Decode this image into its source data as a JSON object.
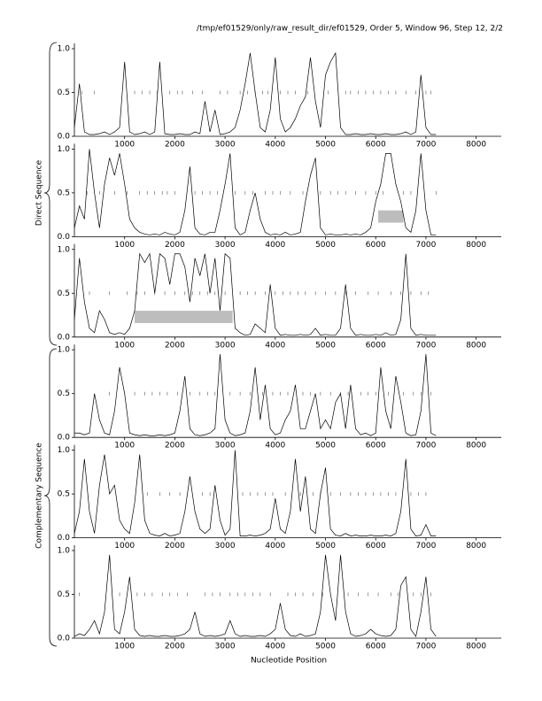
{
  "header": {
    "title": "/tmp/ef01529/only/raw_result_dir/ef01529, Order 5, Window 96, Step 12, 2/2",
    "x_label": "Nucleotide Position",
    "groups": [
      "Direct Sequence",
      "Complementary Sequence"
    ]
  },
  "chart_data": [
    {
      "type": "line",
      "color": "#000000",
      "x": [
        0,
        100,
        200,
        300,
        400,
        500,
        600,
        700,
        800,
        900,
        1000,
        1100,
        1200,
        1300,
        1400,
        1500,
        1600,
        1700,
        1800,
        1900,
        2000,
        2100,
        2200,
        2300,
        2400,
        2500,
        2600,
        2700,
        2800,
        2900,
        3000,
        3100,
        3200,
        3300,
        3400,
        3500,
        3600,
        3700,
        3800,
        3900,
        4000,
        4100,
        4200,
        4300,
        4400,
        4500,
        4600,
        4700,
        4800,
        4900,
        5000,
        5100,
        5200,
        5300,
        5400,
        5500,
        5600,
        5700,
        5800,
        5900,
        6000,
        6100,
        6200,
        6300,
        6400,
        6500,
        6600,
        6700,
        6800,
        6900,
        7000,
        7100,
        7200
      ],
      "values": [
        0.1,
        0.6,
        0.05,
        0.02,
        0.02,
        0.03,
        0.05,
        0.02,
        0.05,
        0.1,
        0.85,
        0.05,
        0.02,
        0.03,
        0.05,
        0.02,
        0.05,
        0.85,
        0.03,
        0.02,
        0.02,
        0.03,
        0.02,
        0.02,
        0.05,
        0.03,
        0.4,
        0.05,
        0.3,
        0.02,
        0.03,
        0.05,
        0.1,
        0.3,
        0.6,
        0.95,
        0.5,
        0.1,
        0.05,
        0.3,
        0.9,
        0.2,
        0.05,
        0.1,
        0.2,
        0.35,
        0.45,
        0.9,
        0.4,
        0.1,
        0.7,
        0.85,
        0.95,
        0.1,
        0.02,
        0.02,
        0.03,
        0.02,
        0.02,
        0.03,
        0.02,
        0.02,
        0.03,
        0.02,
        0.02,
        0.03,
        0.05,
        0.02,
        0.05,
        0.7,
        0.1,
        0.02,
        0.02
      ],
      "stops": [
        150,
        400,
        1200,
        1350,
        1500,
        1650,
        1900,
        2050,
        2150,
        2350,
        2550,
        2900,
        3050,
        3300,
        3450,
        3600,
        3750,
        3850,
        4100,
        4250,
        4400,
        4650,
        5050,
        5400,
        5500,
        5650,
        5800,
        5950,
        6100,
        6250,
        6400,
        6600,
        6800,
        7000,
        7100
      ],
      "regions": [],
      "xlim": [
        0,
        8500
      ],
      "xticks": [
        1000,
        2000,
        3000,
        4000,
        5000,
        6000,
        7000,
        8000
      ],
      "ylim": [
        0,
        1
      ],
      "yticks": [
        {
          "value": 0,
          "label": "0.0"
        },
        {
          "value": 0.5,
          "label": "0.5"
        },
        {
          "value": 1,
          "label": "1.0"
        }
      ]
    },
    {
      "type": "line",
      "color": "#000000",
      "x": [
        0,
        100,
        200,
        300,
        400,
        500,
        600,
        700,
        800,
        900,
        1000,
        1100,
        1200,
        1300,
        1400,
        1500,
        1600,
        1700,
        1800,
        1900,
        2000,
        2100,
        2200,
        2300,
        2400,
        2500,
        2600,
        2700,
        2800,
        2900,
        3000,
        3100,
        3200,
        3300,
        3400,
        3500,
        3600,
        3700,
        3800,
        3900,
        4000,
        4100,
        4200,
        4300,
        4400,
        4500,
        4600,
        4700,
        4800,
        4900,
        5000,
        5100,
        5200,
        5300,
        5400,
        5500,
        5600,
        5700,
        5800,
        5900,
        6000,
        6100,
        6200,
        6300,
        6400,
        6500,
        6600,
        6700,
        6800,
        6900,
        7000,
        7100,
        7200
      ],
      "values": [
        0.1,
        0.35,
        0.2,
        1.0,
        0.5,
        0.1,
        0.6,
        0.9,
        0.7,
        0.95,
        0.6,
        0.2,
        0.1,
        0.05,
        0.03,
        0.02,
        0.03,
        0.02,
        0.05,
        0.03,
        0.02,
        0.05,
        0.3,
        0.8,
        0.1,
        0.03,
        0.02,
        0.05,
        0.05,
        0.3,
        0.6,
        0.95,
        0.1,
        0.02,
        0.05,
        0.3,
        0.5,
        0.2,
        0.05,
        0.02,
        0.03,
        0.02,
        0.05,
        0.02,
        0.03,
        0.05,
        0.4,
        0.7,
        0.9,
        0.1,
        0.02,
        0.03,
        0.02,
        0.02,
        0.03,
        0.02,
        0.03,
        0.02,
        0.05,
        0.1,
        0.4,
        0.6,
        0.95,
        0.95,
        0.6,
        0.4,
        0.1,
        0.05,
        0.3,
        0.95,
        0.3,
        0.02,
        0.02
      ],
      "stops": [
        250,
        500,
        800,
        1050,
        1300,
        1450,
        1600,
        1750,
        1850,
        2000,
        2400,
        2550,
        2700,
        2850,
        3200,
        3400,
        3550,
        3800,
        3950,
        4100,
        4300,
        4550,
        4900,
        5100,
        5250,
        5400,
        5600,
        5800,
        6000,
        6150,
        6550,
        6700,
        7200
      ],
      "regions": [
        [
          6050,
          6550
        ]
      ],
      "xlim": [
        0,
        8500
      ],
      "xticks": [
        1000,
        2000,
        3000,
        4000,
        5000,
        6000,
        7000,
        8000
      ],
      "ylim": [
        0,
        1
      ],
      "yticks": [
        {
          "value": 0,
          "label": "0.0"
        },
        {
          "value": 0.5,
          "label": "0.5"
        },
        {
          "value": 1,
          "label": "1.0"
        }
      ]
    },
    {
      "type": "line",
      "color": "#000000",
      "x": [
        0,
        100,
        200,
        300,
        400,
        500,
        600,
        700,
        800,
        900,
        1000,
        1100,
        1200,
        1300,
        1400,
        1500,
        1600,
        1700,
        1800,
        1900,
        2000,
        2100,
        2200,
        2300,
        2400,
        2500,
        2600,
        2700,
        2800,
        2900,
        3000,
        3100,
        3200,
        3300,
        3400,
        3500,
        3600,
        3700,
        3800,
        3900,
        4000,
        4100,
        4200,
        4300,
        4400,
        4500,
        4600,
        4700,
        4800,
        4900,
        5000,
        5100,
        5200,
        5300,
        5400,
        5500,
        5600,
        5700,
        5800,
        5900,
        6000,
        6100,
        6200,
        6300,
        6400,
        6500,
        6600,
        6700,
        6800,
        6900,
        7000,
        7100,
        7200
      ],
      "values": [
        0.2,
        0.9,
        0.4,
        0.1,
        0.05,
        0.3,
        0.2,
        0.05,
        0.03,
        0.05,
        0.03,
        0.1,
        0.3,
        0.95,
        0.85,
        0.95,
        0.5,
        0.95,
        0.9,
        0.6,
        0.95,
        0.95,
        0.8,
        0.4,
        0.9,
        0.7,
        0.95,
        0.5,
        0.9,
        0.3,
        0.95,
        0.9,
        0.1,
        0.05,
        0.02,
        0.03,
        0.15,
        0.1,
        0.05,
        0.6,
        0.1,
        0.02,
        0.03,
        0.02,
        0.02,
        0.03,
        0.02,
        0.03,
        0.1,
        0.02,
        0.03,
        0.02,
        0.02,
        0.1,
        0.6,
        0.1,
        0.02,
        0.03,
        0.02,
        0.02,
        0.03,
        0.02,
        0.05,
        0.02,
        0.03,
        0.2,
        0.95,
        0.1,
        0.02,
        0.03,
        0.02,
        0.02,
        0.02
      ],
      "stops": [
        300,
        700,
        1050,
        1250,
        1400,
        1600,
        1800,
        2000,
        2200,
        2350,
        2500,
        2650,
        2800,
        3000,
        3300,
        3450,
        3600,
        3800,
        4000,
        4150,
        4300,
        4450,
        4600,
        4800,
        5000,
        5200,
        5400,
        5600,
        5850,
        6050,
        6300,
        6500,
        6700,
        6900,
        7050
      ],
      "regions": [
        [
          1200,
          3150
        ]
      ],
      "xlim": [
        0,
        8500
      ],
      "xticks": [
        1000,
        2000,
        3000,
        4000,
        5000,
        6000,
        7000,
        8000
      ],
      "ylim": [
        0,
        1
      ],
      "yticks": [
        {
          "value": 0,
          "label": "0.0"
        },
        {
          "value": 0.5,
          "label": "0.5"
        },
        {
          "value": 1,
          "label": "1.0"
        }
      ]
    },
    {
      "type": "line",
      "color": "#000000",
      "x": [
        0,
        100,
        200,
        300,
        400,
        500,
        600,
        700,
        800,
        900,
        1000,
        1100,
        1200,
        1300,
        1400,
        1500,
        1600,
        1700,
        1800,
        1900,
        2000,
        2100,
        2200,
        2300,
        2400,
        2500,
        2600,
        2700,
        2800,
        2900,
        3000,
        3100,
        3200,
        3300,
        3400,
        3500,
        3600,
        3700,
        3800,
        3900,
        4000,
        4100,
        4200,
        4300,
        4400,
        4500,
        4600,
        4700,
        4800,
        4900,
        5000,
        5100,
        5200,
        5300,
        5400,
        5500,
        5600,
        5700,
        5800,
        5900,
        6000,
        6100,
        6200,
        6300,
        6400,
        6500,
        6600,
        6700,
        6800,
        6900,
        7000,
        7100,
        7200
      ],
      "values": [
        0.05,
        0.05,
        0.03,
        0.05,
        0.5,
        0.2,
        0.05,
        0.03,
        0.3,
        0.8,
        0.5,
        0.05,
        0.03,
        0.02,
        0.03,
        0.02,
        0.02,
        0.03,
        0.02,
        0.03,
        0.05,
        0.3,
        0.7,
        0.1,
        0.03,
        0.02,
        0.03,
        0.05,
        0.1,
        0.95,
        0.2,
        0.05,
        0.02,
        0.03,
        0.05,
        0.3,
        0.8,
        0.2,
        0.6,
        0.1,
        0.03,
        0.05,
        0.2,
        0.3,
        0.6,
        0.1,
        0.1,
        0.3,
        0.5,
        0.1,
        0.2,
        0.1,
        0.4,
        0.5,
        0.1,
        0.6,
        0.1,
        0.03,
        0.05,
        0.02,
        0.05,
        0.8,
        0.3,
        0.1,
        0.7,
        0.4,
        0.05,
        0.02,
        0.03,
        0.3,
        0.95,
        0.05,
        0.02
      ],
      "stops": [
        700,
        1200,
        1400,
        1550,
        1700,
        1850,
        2050,
        2300,
        2500,
        2650,
        2800,
        3100,
        3300,
        3500,
        3750,
        3950,
        4100,
        4250,
        4550,
        4700,
        4900,
        5100,
        5300,
        5450,
        5700,
        5850,
        6000,
        6250,
        6550,
        6750,
        6900,
        7100
      ],
      "regions": [],
      "xlim": [
        0,
        8500
      ],
      "xticks": [
        1000,
        2000,
        3000,
        4000,
        5000,
        6000,
        7000,
        8000
      ],
      "ylim": [
        0,
        1
      ],
      "yticks": [
        {
          "value": 0,
          "label": "0.0"
        },
        {
          "value": 0.5,
          "label": "0.5"
        },
        {
          "value": 1,
          "label": "1.0"
        }
      ]
    },
    {
      "type": "line",
      "color": "#000000",
      "x": [
        0,
        100,
        200,
        300,
        400,
        500,
        600,
        700,
        800,
        900,
        1000,
        1100,
        1200,
        1300,
        1400,
        1500,
        1600,
        1700,
        1800,
        1900,
        2000,
        2100,
        2200,
        2300,
        2400,
        2500,
        2600,
        2700,
        2800,
        2900,
        3000,
        3100,
        3200,
        3300,
        3400,
        3500,
        3600,
        3700,
        3800,
        3900,
        4000,
        4100,
        4200,
        4300,
        4400,
        4500,
        4600,
        4700,
        4800,
        4900,
        5000,
        5100,
        5200,
        5300,
        5400,
        5500,
        5600,
        5700,
        5800,
        5900,
        6000,
        6100,
        6200,
        6300,
        6400,
        6500,
        6600,
        6700,
        6800,
        6900,
        7000,
        7100,
        7200
      ],
      "values": [
        0.05,
        0.3,
        0.9,
        0.3,
        0.05,
        0.6,
        0.95,
        0.5,
        0.6,
        0.2,
        0.1,
        0.05,
        0.4,
        0.95,
        0.2,
        0.05,
        0.03,
        0.02,
        0.05,
        0.02,
        0.03,
        0.05,
        0.3,
        0.7,
        0.3,
        0.1,
        0.05,
        0.1,
        0.6,
        0.2,
        0.03,
        0.1,
        1.0,
        0.02,
        0.02,
        0.03,
        0.02,
        0.03,
        0.05,
        0.1,
        0.45,
        0.1,
        0.05,
        0.3,
        0.9,
        0.3,
        0.7,
        0.1,
        0.05,
        0.5,
        0.8,
        0.1,
        0.03,
        0.02,
        0.05,
        0.02,
        0.03,
        0.02,
        0.02,
        0.03,
        0.02,
        0.02,
        0.03,
        0.02,
        0.05,
        0.3,
        0.9,
        0.1,
        0.02,
        0.03,
        0.15,
        0.02,
        0.02
      ],
      "stops": [
        1450,
        1700,
        1900,
        2100,
        2550,
        2700,
        3350,
        3500,
        3650,
        3800,
        3950,
        4200,
        4500,
        4750,
        4900,
        5100,
        5300,
        5500,
        5650,
        5800,
        5950,
        6100,
        6250,
        6400,
        6700,
        6850,
        7000
      ],
      "regions": [],
      "xlim": [
        0,
        8500
      ],
      "xticks": [
        1000,
        2000,
        3000,
        4000,
        5000,
        6000,
        7000,
        8000
      ],
      "ylim": [
        0,
        1
      ],
      "yticks": [
        {
          "value": 0,
          "label": "0.0"
        },
        {
          "value": 0.5,
          "label": "0.5"
        },
        {
          "value": 1,
          "label": "1.0"
        }
      ]
    },
    {
      "type": "line",
      "color": "#000000",
      "x": [
        0,
        100,
        200,
        300,
        400,
        500,
        600,
        700,
        800,
        900,
        1000,
        1100,
        1200,
        1300,
        1400,
        1500,
        1600,
        1700,
        1800,
        1900,
        2000,
        2100,
        2200,
        2300,
        2400,
        2500,
        2600,
        2700,
        2800,
        2900,
        3000,
        3100,
        3200,
        3300,
        3400,
        3500,
        3600,
        3700,
        3800,
        3900,
        4000,
        4100,
        4200,
        4300,
        4400,
        4500,
        4600,
        4700,
        4800,
        4900,
        5000,
        5100,
        5200,
        5300,
        5400,
        5500,
        5600,
        5700,
        5800,
        5900,
        6000,
        6100,
        6200,
        6300,
        6400,
        6500,
        6600,
        6700,
        6800,
        6900,
        7000,
        7100,
        7200
      ],
      "values": [
        0.02,
        0.05,
        0.03,
        0.1,
        0.2,
        0.05,
        0.3,
        0.95,
        0.1,
        0.05,
        0.3,
        0.7,
        0.1,
        0.03,
        0.02,
        0.03,
        0.02,
        0.02,
        0.03,
        0.02,
        0.02,
        0.03,
        0.05,
        0.1,
        0.3,
        0.05,
        0.02,
        0.03,
        0.02,
        0.03,
        0.05,
        0.2,
        0.05,
        0.02,
        0.03,
        0.02,
        0.02,
        0.03,
        0.02,
        0.05,
        0.1,
        0.4,
        0.1,
        0.03,
        0.02,
        0.05,
        0.02,
        0.03,
        0.05,
        0.3,
        0.95,
        0.5,
        0.2,
        0.95,
        0.3,
        0.05,
        0.02,
        0.03,
        0.05,
        0.1,
        0.05,
        0.03,
        0.02,
        0.03,
        0.1,
        0.6,
        0.7,
        0.1,
        0.02,
        0.3,
        0.7,
        0.1,
        0.02
      ],
      "stops": [
        100,
        900,
        1250,
        1400,
        1550,
        1750,
        1900,
        2050,
        2250,
        2600,
        2750,
        2900,
        3100,
        3250,
        3400,
        3550,
        3700,
        3900,
        4250,
        4400,
        4550,
        4750,
        4950,
        5450,
        5650,
        5850,
        6050,
        6300,
        6450,
        6750,
        6900,
        7100
      ],
      "regions": [],
      "xlim": [
        0,
        8500
      ],
      "xticks": [
        1000,
        2000,
        3000,
        4000,
        5000,
        6000,
        7000,
        8000
      ],
      "ylim": [
        0,
        1
      ],
      "yticks": [
        {
          "value": 0,
          "label": "0.0"
        },
        {
          "value": 0.5,
          "label": "0.5"
        },
        {
          "value": 1,
          "label": "1.0"
        }
      ]
    }
  ]
}
